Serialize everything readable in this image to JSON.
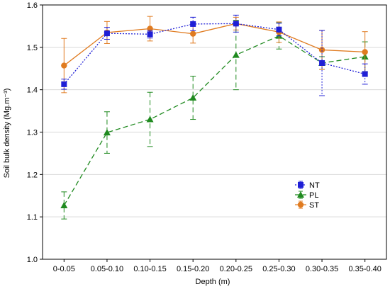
{
  "chart_data": {
    "type": "line",
    "xlabel": "Depth (m)",
    "ylabel": "Soil bulk density (Mg.m⁻³)",
    "categories": [
      "0-0.05",
      "0.05-0.10",
      "0.10-0.15",
      "0.15-0.20",
      "0.20-0.25",
      "0.25-0.30",
      "0.30-0.35",
      "0.35-0.40"
    ],
    "ylim": [
      1.0,
      1.6
    ],
    "yticks": [
      "1.0",
      "1.1",
      "1.2",
      "1.3",
      "1.4",
      "1.5",
      "1.6"
    ],
    "grid": true,
    "legend_position": "right",
    "series": [
      {
        "name": "NT",
        "color": "#1f1fd6",
        "marker": "square",
        "line_style": "dotted",
        "values": [
          1.413,
          1.533,
          1.531,
          1.555,
          1.556,
          1.542,
          1.463,
          1.437
        ],
        "err": [
          0.012,
          0.014,
          0.009,
          0.016,
          0.02,
          0.015,
          0.077,
          0.024
        ]
      },
      {
        "name": "PL",
        "color": "#1f8a1f",
        "marker": "triangle",
        "line_style": "dashed",
        "values": [
          1.127,
          1.299,
          1.33,
          1.381,
          1.482,
          1.527,
          1.463,
          1.478
        ],
        "err": [
          0.032,
          0.049,
          0.064,
          0.051,
          0.082,
          0.031,
          0.015,
          0.035
        ]
      },
      {
        "name": "ST",
        "color": "#e07b20",
        "marker": "circle",
        "line_style": "solid",
        "values": [
          1.457,
          1.535,
          1.544,
          1.532,
          1.556,
          1.536,
          1.494,
          1.489
        ],
        "err": [
          0.064,
          0.026,
          0.029,
          0.022,
          0.015,
          0.024,
          0.046,
          0.048
        ]
      }
    ]
  }
}
